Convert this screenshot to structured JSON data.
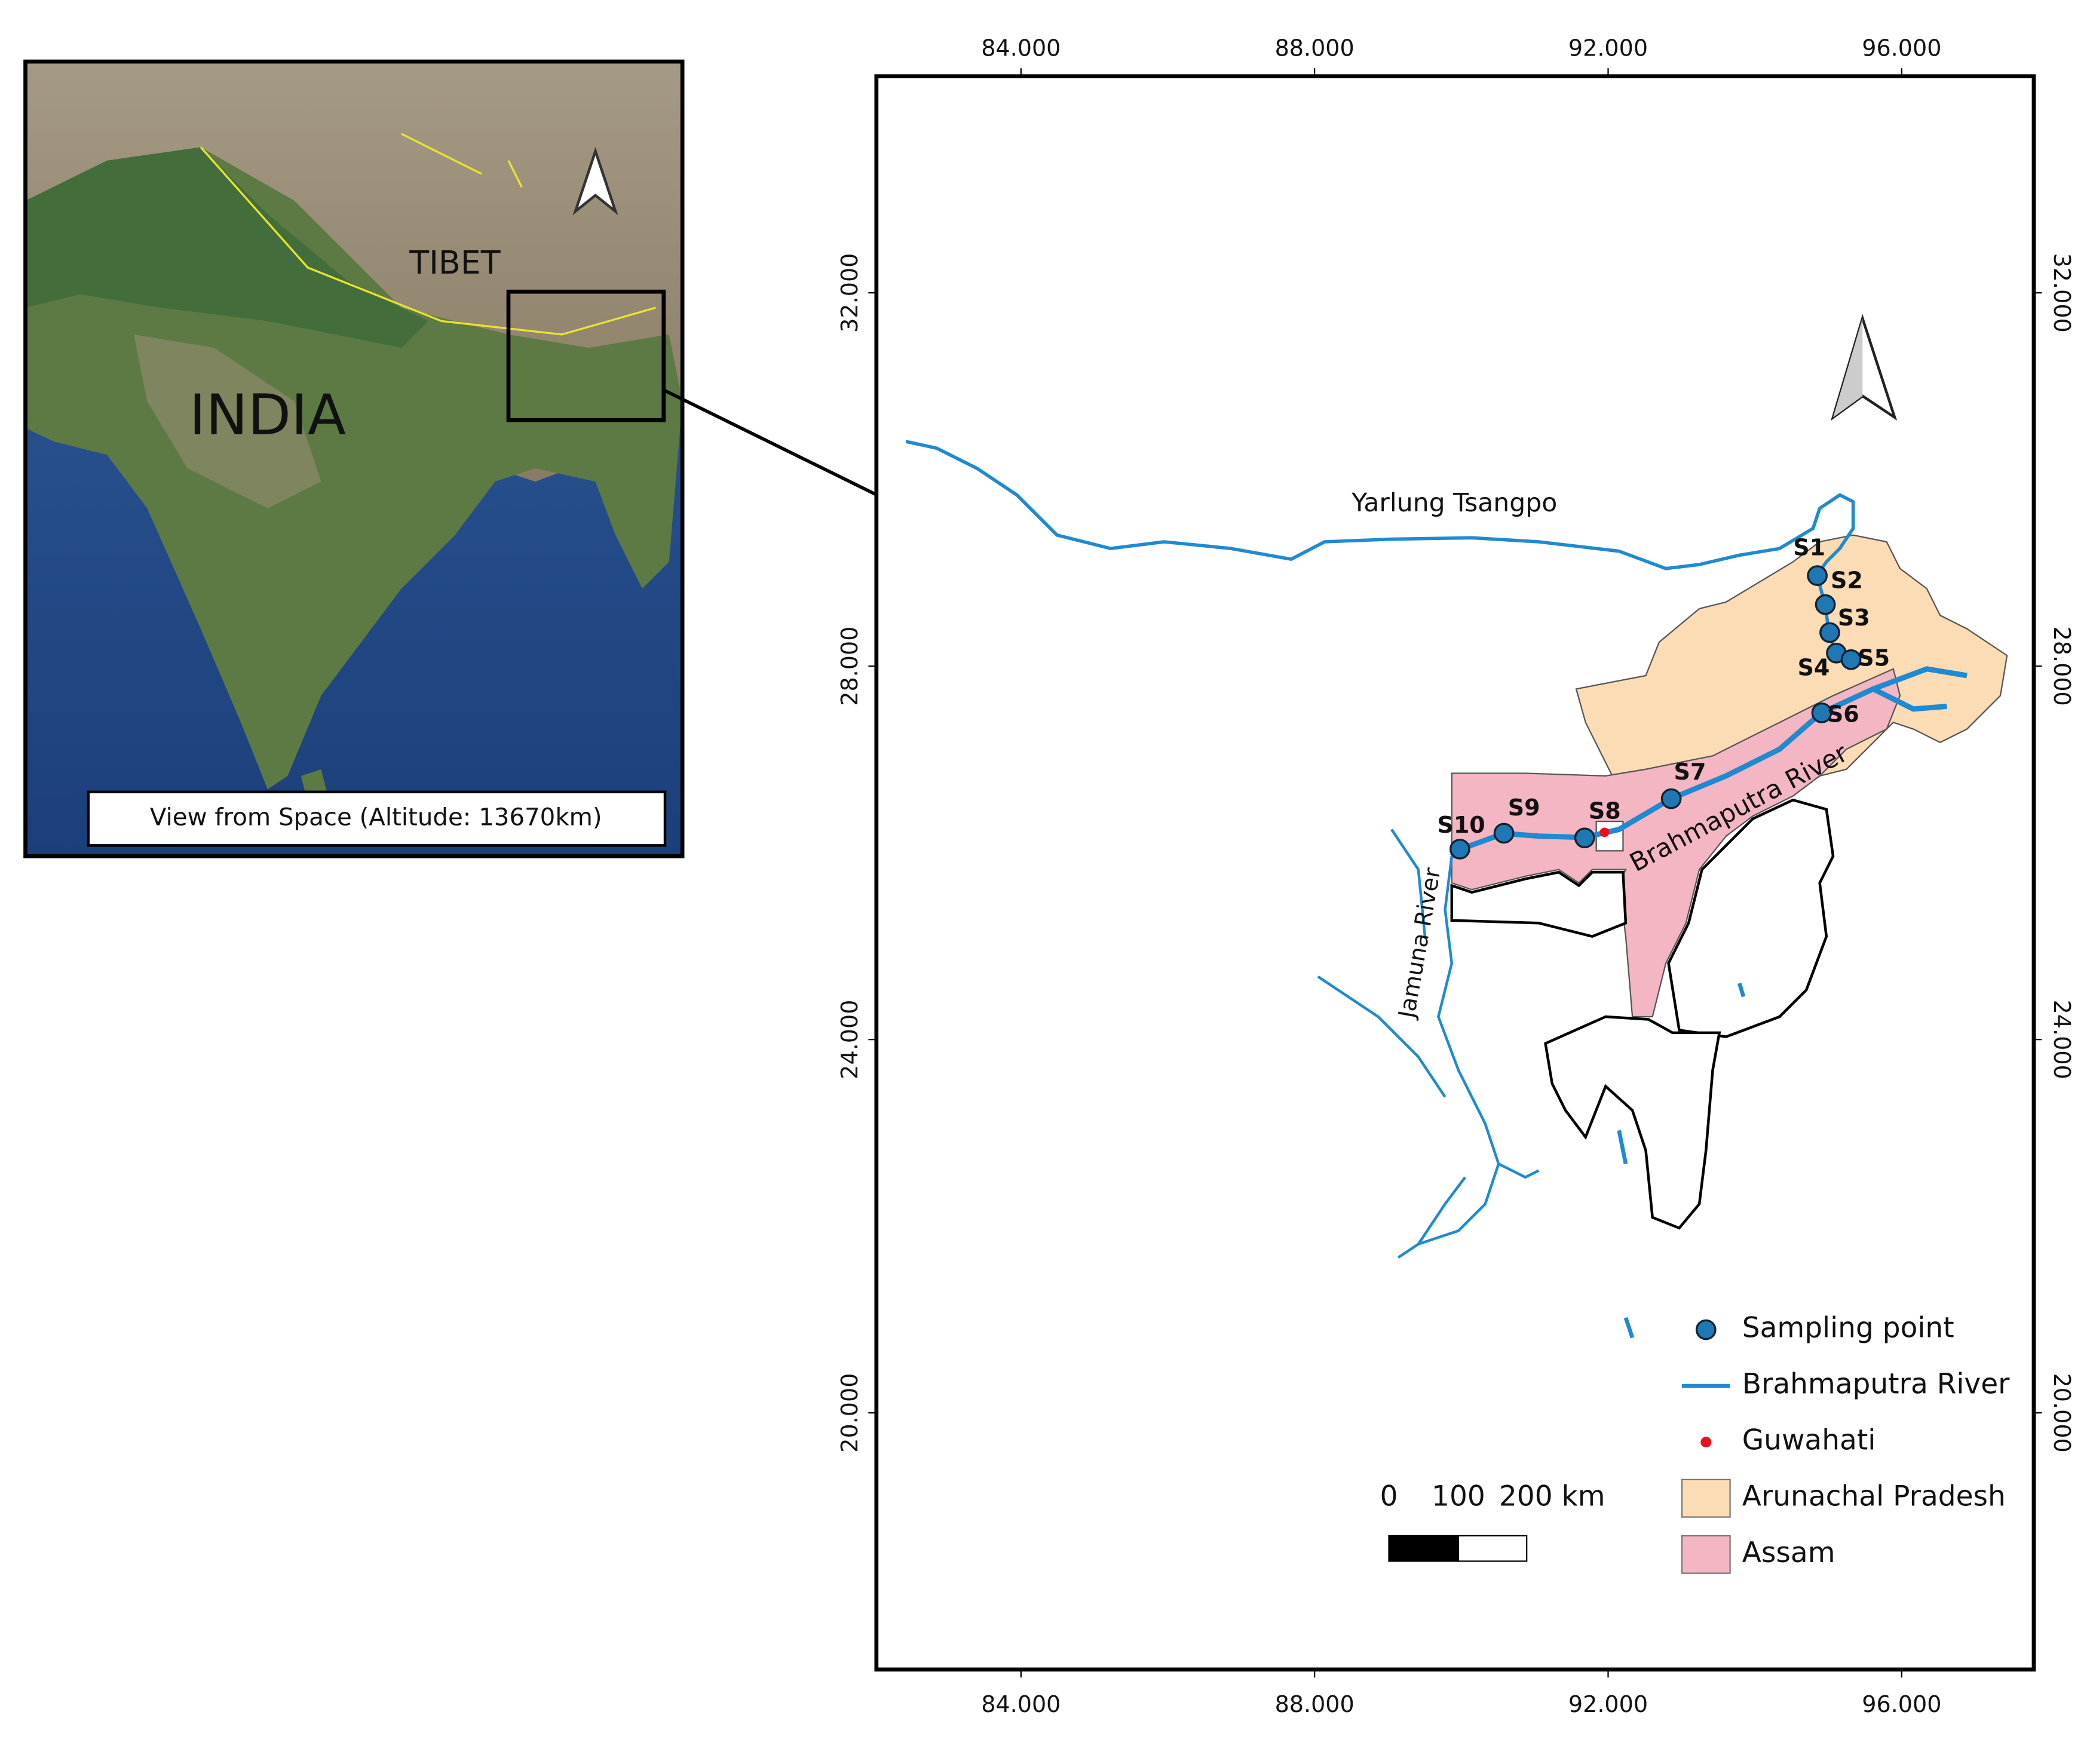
{
  "inset": {
    "labels": [
      "TIBET",
      "INDIA"
    ],
    "caption": "View from Space (Altitude: 13670km)"
  },
  "map": {
    "xlim": [
      82.03,
      97.8
    ],
    "ylim": [
      17.25,
      34.32
    ],
    "xticks": [
      {
        "value": 84,
        "label": "84.000"
      },
      {
        "value": 88,
        "label": "88.000"
      },
      {
        "value": 92,
        "label": "92.000"
      },
      {
        "value": 96,
        "label": "96.000"
      }
    ],
    "yticks": [
      {
        "value": 32,
        "label": "32.000"
      },
      {
        "value": 28,
        "label": "28.000"
      },
      {
        "value": 24,
        "label": "24.000"
      },
      {
        "value": 20,
        "label": "20.000"
      }
    ],
    "rivers": [
      "Yarlung Tsangpo",
      "Jamuna River",
      "Brahmaputra River"
    ],
    "sites": [
      {
        "label": "S1",
        "lon": 94.85,
        "lat": 28.97
      },
      {
        "label": "S2",
        "lon": 94.96,
        "lat": 28.66
      },
      {
        "label": "S3",
        "lon": 95.02,
        "lat": 28.36
      },
      {
        "label": "S4",
        "lon": 95.11,
        "lat": 28.14
      },
      {
        "label": "S5",
        "lon": 95.31,
        "lat": 28.07
      },
      {
        "label": "S6",
        "lon": 94.91,
        "lat": 27.5
      },
      {
        "label": "S7",
        "lon": 92.86,
        "lat": 26.58
      },
      {
        "label": "S8",
        "lon": 91.68,
        "lat": 26.16
      },
      {
        "label": "S9",
        "lon": 90.58,
        "lat": 26.21
      },
      {
        "label": "S10",
        "lon": 89.98,
        "lat": 26.04
      }
    ],
    "guwahati": {
      "lon": 91.95,
      "lat": 26.22
    },
    "site_color": "#1f77b4",
    "river_color": "#1f8ad0",
    "guwahati_color": "#e8101a",
    "legend": [
      {
        "name": "Sampling point",
        "color": "#1f77b4"
      },
      {
        "name": "Brahmaputra River",
        "color": "#1f8ad0"
      },
      {
        "name": "Guwahati",
        "color": "#e8101a"
      },
      {
        "name": "Arunachal Pradesh",
        "color": "#fbdcb5"
      },
      {
        "name": "Assam",
        "color": "#f4b6c2"
      }
    ],
    "scale_bar": [
      "0",
      "100",
      "200 km"
    ]
  }
}
